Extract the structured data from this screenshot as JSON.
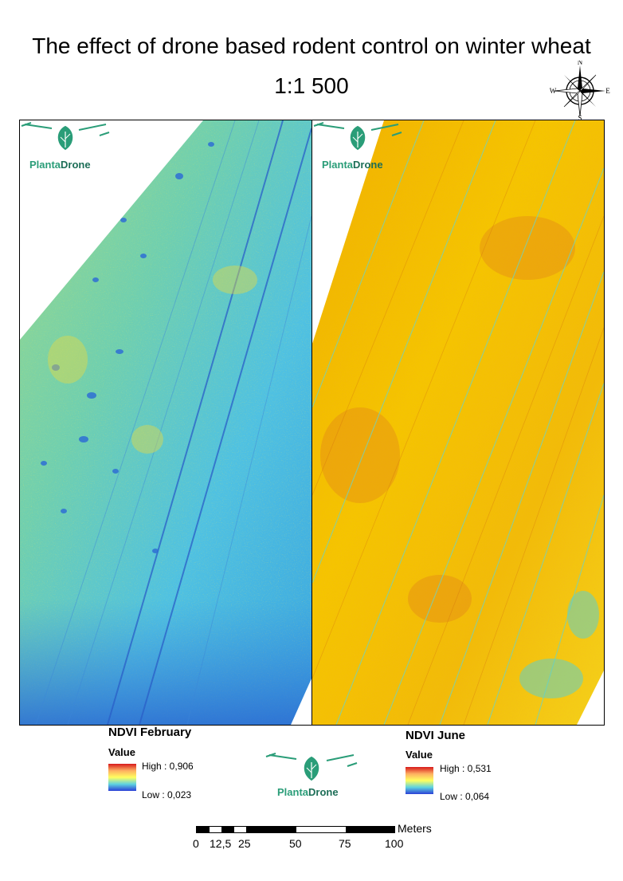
{
  "title": "The effect of drone based rodent control on winter wheat",
  "map_scale": "1:1 500",
  "compass": {
    "north": "N",
    "south": "S",
    "east": "E",
    "west": "W",
    "icon": "compass-rose-icon"
  },
  "logo": {
    "part1": "Planta",
    "part2": "Drone",
    "icon": "drone-leaf-icon",
    "color": "#2a9d78"
  },
  "maps": [
    {
      "id": "feb",
      "layer_title": "NDVI February",
      "legend_heading": "Value",
      "high_label": "High : 0,906",
      "low_label": "Low : 0,023",
      "dominant_colors": [
        "#44c2e6",
        "#7fd39b",
        "#c7e25a",
        "#2a6fd6"
      ]
    },
    {
      "id": "jun",
      "layer_title": "NDVI June",
      "legend_heading": "Value",
      "high_label": "High : 0,531",
      "low_label": "Low : 0,064",
      "dominant_colors": [
        "#f5c400",
        "#ef9a10",
        "#e86a12",
        "#5fd0c8"
      ]
    }
  ],
  "scalebar": {
    "unit": "Meters",
    "ticks": [
      "0",
      "12,5",
      "25",
      "50",
      "75",
      "100"
    ]
  }
}
